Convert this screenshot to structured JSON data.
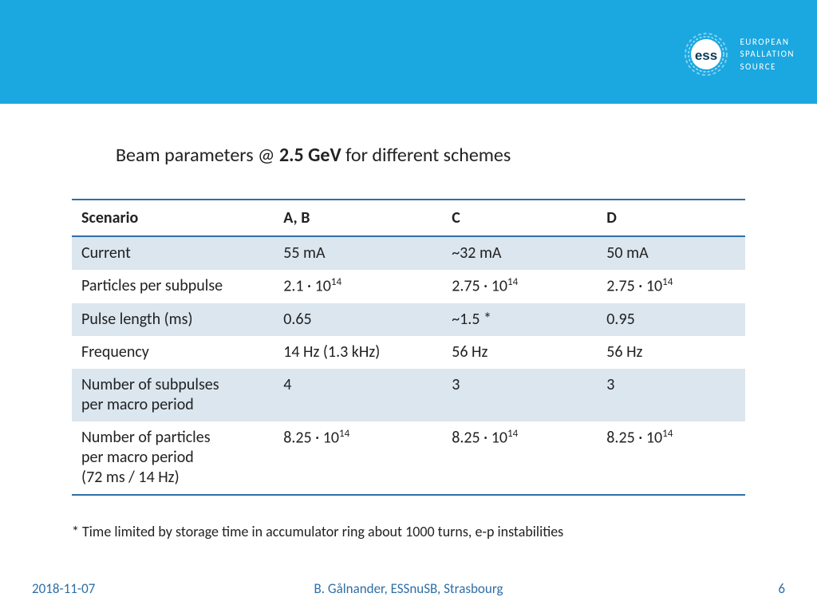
{
  "banner": {
    "bg_color": "#1ba7e0",
    "logo_label": "ess",
    "org_line1": "EUROPEAN",
    "org_line2": "SPALLATION",
    "org_line3": "SOURCE"
  },
  "title": {
    "pre": "Beam parameters @ ",
    "bold": "2.5 GeV",
    "post": " for different schemes"
  },
  "table": {
    "type": "table",
    "header_border_color": "#2f6fa7",
    "row_odd_bg": "#dbe6ef",
    "row_even_bg": "#ffffff",
    "fontsize": 20,
    "columns": [
      "Scenario",
      "A, B",
      "C",
      "D"
    ],
    "rows": [
      {
        "label": "Current",
        "ab": "55 mA",
        "c": "~32 mA",
        "d": "50 mA"
      },
      {
        "label": "Particles per subpulse",
        "ab_html": "2.1 · 10<sup>14</sup>",
        "c_html": "2.75 · 10<sup>14</sup>",
        "d_html": "2.75 · 10<sup>14</sup>"
      },
      {
        "label": "Pulse length (ms)",
        "ab": "0.65",
        "c": "~1.5 *",
        "d": "0.95"
      },
      {
        "label": "Frequency",
        "ab": "14 Hz (1.3 kHz)",
        "c": "56 Hz",
        "d": "56 Hz"
      },
      {
        "label": "Number of subpulses per macro period",
        "ab": "4",
        "c": "3",
        "d": "3"
      },
      {
        "label": "Number of particles per macro period (72 ms / 14 Hz)",
        "ab_html": "8.25 · 10<sup>14</sup>",
        "c_html": "8.25 · 10<sup>14</sup>",
        "d_html": "8.25 · 10<sup>14</sup>"
      }
    ]
  },
  "footnote": "* Time limited by storage time in accumulator ring about 1000 turns, e-p instabilities",
  "footer": {
    "date": "2018-11-07",
    "author": "B. Gålnander, ESSnuSB, Strasbourg",
    "page": "6"
  }
}
